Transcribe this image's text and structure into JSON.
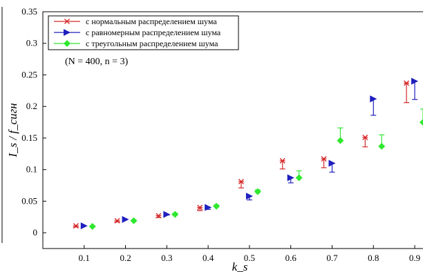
{
  "chart_data": {
    "type": "scatter",
    "xlabel": "k_s",
    "ylabel": "I_s / f_сигн",
    "xlim": [
      0,
      0.92
    ],
    "ylim": [
      -0.025,
      0.35
    ],
    "x_ticks": [
      0.1,
      0.2,
      0.3,
      0.4,
      0.5,
      0.6,
      0.7,
      0.8,
      0.9
    ],
    "y_ticks": [
      0,
      0.05,
      0.1,
      0.15,
      0.2,
      0.25,
      0.3,
      0.35
    ],
    "grid": false,
    "legend_position": "top-left",
    "annotation": "(N = 400,  n = 3)",
    "series": [
      {
        "name": "с нормальным распределением шума",
        "color": "#d62728",
        "marker": "x",
        "x": [
          0.08,
          0.18,
          0.28,
          0.38,
          0.48,
          0.58,
          0.68,
          0.78,
          0.88
        ],
        "y": [
          0.011,
          0.019,
          0.027,
          0.04,
          0.081,
          0.114,
          0.117,
          0.151,
          0.237
        ],
        "err_low": [
          0.009,
          0.017,
          0.024,
          0.035,
          0.071,
          0.101,
          0.103,
          0.136,
          0.206
        ],
        "err_high": [
          0.011,
          0.019,
          0.027,
          0.04,
          0.081,
          0.114,
          0.117,
          0.151,
          0.237
        ]
      },
      {
        "name": "с равномерным распределением шума",
        "color": "#1f1fbf",
        "marker": "triangle-right",
        "x": [
          0.1,
          0.2,
          0.3,
          0.4,
          0.5,
          0.6,
          0.7,
          0.8,
          0.9
        ],
        "y": [
          0.011,
          0.021,
          0.029,
          0.04,
          0.058,
          0.087,
          0.11,
          0.212,
          0.24
        ],
        "err_low": [
          0.011,
          0.021,
          0.028,
          0.037,
          0.052,
          0.079,
          0.096,
          0.186,
          0.211
        ],
        "err_high": [
          0.011,
          0.021,
          0.029,
          0.04,
          0.058,
          0.087,
          0.11,
          0.212,
          0.24
        ]
      },
      {
        "name": "с треугольным распределением шума",
        "color": "#2ee82e",
        "marker": "diamond",
        "x": [
          0.12,
          0.22,
          0.32,
          0.42,
          0.52,
          0.62,
          0.72,
          0.82,
          0.92
        ],
        "y": [
          0.01,
          0.019,
          0.029,
          0.042,
          0.065,
          0.087,
          0.146,
          0.137,
          0.175
        ],
        "err_low": [
          0.01,
          0.019,
          0.029,
          0.042,
          0.065,
          0.087,
          0.146,
          0.137,
          0.175
        ],
        "err_high": [
          0.011,
          0.02,
          0.031,
          0.044,
          0.068,
          0.098,
          0.166,
          0.155,
          0.196
        ]
      }
    ]
  }
}
